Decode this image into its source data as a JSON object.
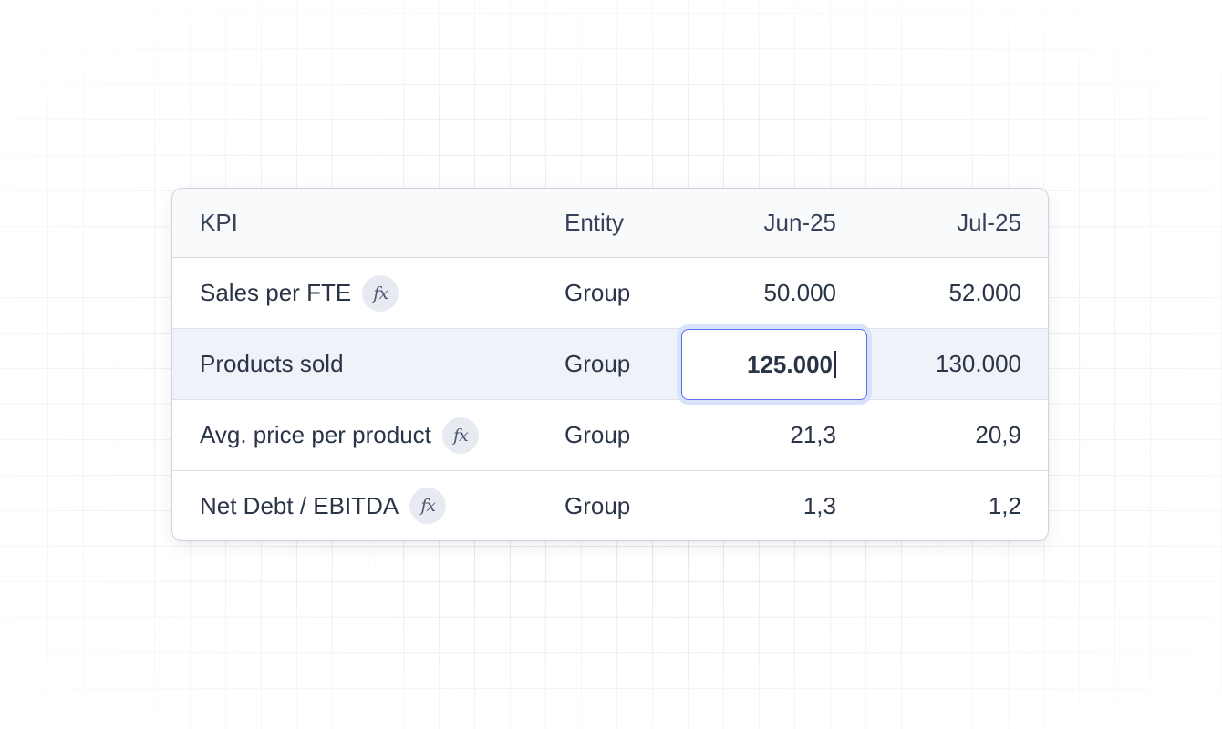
{
  "table": {
    "headers": {
      "kpi": "KPI",
      "entity": "Entity",
      "jun": "Jun-25",
      "jul": "Jul-25"
    },
    "rows": [
      {
        "kpi": "Sales per FTE",
        "formula": true,
        "entity": "Group",
        "jun": "50.000",
        "jul": "52.000"
      },
      {
        "kpi": "Products sold",
        "formula": false,
        "entity": "Group",
        "jun": "125.000",
        "jul": "130.000",
        "editing": true
      },
      {
        "kpi": "Avg. price per product",
        "formula": true,
        "entity": "Group",
        "jun": "21,3",
        "jul": "20,9"
      },
      {
        "kpi": "Net Debt / EBITDA",
        "formula": true,
        "entity": "Group",
        "jun": "1,3",
        "jul": "1,2"
      }
    ],
    "formula_icon": "fx-icon",
    "formula_glyph": "fx"
  },
  "colors": {
    "accent": "#5b6ff0",
    "selected_row": "#eff3f9",
    "border": "#cdd3e0"
  }
}
